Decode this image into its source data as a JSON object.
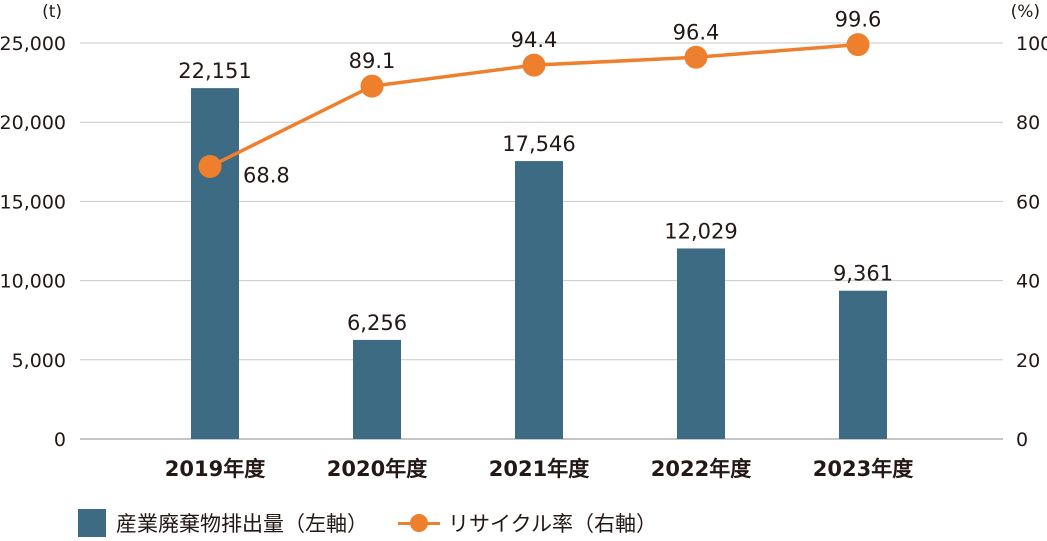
{
  "chart_data": {
    "type": "bar",
    "categories": [
      "2019年度",
      "2020年度",
      "2021年度",
      "2022年度",
      "2023年度"
    ],
    "series": [
      {
        "name": "産業廃棄物排出量（左軸）",
        "type": "bar",
        "axis": "left",
        "values": [
          22151,
          6256,
          17546,
          12029,
          9361
        ],
        "labels": [
          "22,151",
          "6,256",
          "17,546",
          "12,029",
          "9,361"
        ],
        "color": "#3d6b84"
      },
      {
        "name": "リサイクル率（右軸）",
        "type": "line",
        "axis": "right",
        "values": [
          68.8,
          89.1,
          94.4,
          96.4,
          99.6
        ],
        "labels": [
          "68.8",
          "89.1",
          "94.4",
          "96.4",
          "99.6"
        ],
        "color": "#ee7f2d"
      }
    ],
    "y_left": {
      "unit": "(t)",
      "ylim": [
        0,
        25000
      ],
      "ticks": [
        "0",
        "5,000",
        "10,000",
        "15,000",
        "20,000",
        "25,000"
      ],
      "tick_values": [
        0,
        5000,
        10000,
        15000,
        20000,
        25000
      ]
    },
    "y_right": {
      "unit": "(%)",
      "ylim": [
        0,
        100
      ],
      "ticks": [
        "0",
        "20",
        "40",
        "60",
        "80",
        "100"
      ],
      "tick_values": [
        0,
        20,
        40,
        60,
        80,
        100
      ]
    },
    "grid": true,
    "legend_position": "bottom-left"
  }
}
